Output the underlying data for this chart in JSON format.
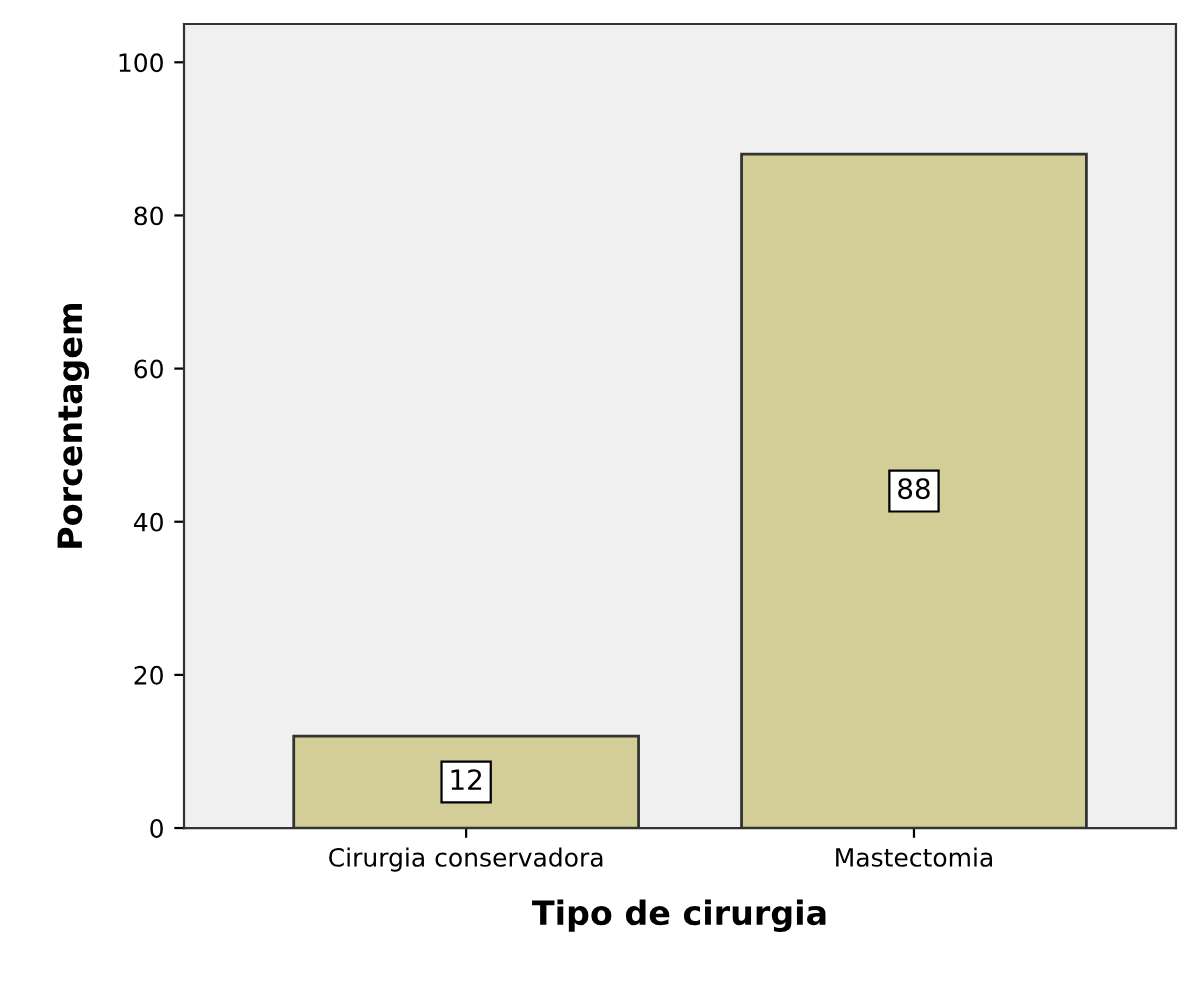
{
  "chart_data": {
    "type": "bar",
    "xlabel": "Tipo de cirurgia",
    "ylabel": "Porcentagem",
    "categories": [
      "Cirurgia conservadora",
      "Mastectomia"
    ],
    "values": [
      12,
      88
    ],
    "color": "#d3ce97",
    "ylim": [
      0,
      105
    ],
    "yticks": [
      0,
      20,
      40,
      60,
      80,
      100
    ],
    "grid": false,
    "data_labels": true
  }
}
